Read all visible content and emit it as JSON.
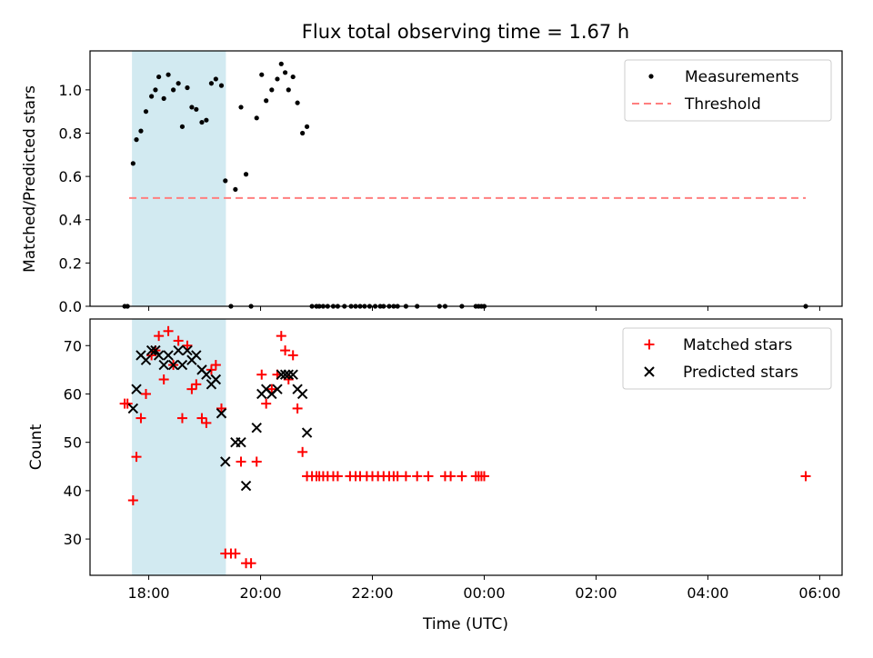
{
  "title": "Flux total observing time = 1.67 h",
  "colors": {
    "measurement": "#000000",
    "threshold": "#ff7f7f",
    "matched": "#ff0000",
    "predicted": "#000000",
    "shade": "#add8e6"
  },
  "chart_data": [
    {
      "type": "scatter",
      "panel": "top",
      "xlabel": "",
      "ylabel": "Matched/Predicted stars",
      "x_unit": "hours since 00:00 of first night (UTC)",
      "xlim": [
        16.95,
        30.4
      ],
      "ylim": [
        0,
        1.18
      ],
      "yticks": [
        "0.0",
        "0.2",
        "0.4",
        "0.6",
        "0.8",
        "1.0"
      ],
      "grid": false,
      "legend": "top-right",
      "shaded_interval": {
        "start": 17.7,
        "end": 19.38
      },
      "threshold": {
        "name": "Threshold",
        "value": 0.5,
        "x_start": 17.65,
        "x_end": 29.75
      },
      "series": [
        {
          "name": "Measurements",
          "marker": "dot",
          "points": [
            [
              17.57,
              0.0
            ],
            [
              17.62,
              0.0
            ],
            [
              17.72,
              0.66
            ],
            [
              17.78,
              0.77
            ],
            [
              17.86,
              0.81
            ],
            [
              17.95,
              0.9
            ],
            [
              18.05,
              0.97
            ],
            [
              18.12,
              1.0
            ],
            [
              18.18,
              1.06
            ],
            [
              18.27,
              0.96
            ],
            [
              18.35,
              1.07
            ],
            [
              18.44,
              1.0
            ],
            [
              18.53,
              1.03
            ],
            [
              18.6,
              0.83
            ],
            [
              18.69,
              1.01
            ],
            [
              18.77,
              0.92
            ],
            [
              18.85,
              0.91
            ],
            [
              18.95,
              0.85
            ],
            [
              19.03,
              0.86
            ],
            [
              19.12,
              1.03
            ],
            [
              19.2,
              1.05
            ],
            [
              19.3,
              1.02
            ],
            [
              19.37,
              0.58
            ],
            [
              19.47,
              0.0
            ],
            [
              19.55,
              0.54
            ],
            [
              19.65,
              0.92
            ],
            [
              19.74,
              0.61
            ],
            [
              19.83,
              0.0
            ],
            [
              19.93,
              0.87
            ],
            [
              20.02,
              1.07
            ],
            [
              20.1,
              0.95
            ],
            [
              20.2,
              1.0
            ],
            [
              20.3,
              1.05
            ],
            [
              20.37,
              1.12
            ],
            [
              20.44,
              1.08
            ],
            [
              20.5,
              1.0
            ],
            [
              20.58,
              1.06
            ],
            [
              20.66,
              0.94
            ],
            [
              20.75,
              0.8
            ],
            [
              20.83,
              0.83
            ],
            [
              20.92,
              0.0
            ],
            [
              21.0,
              0.0
            ],
            [
              21.05,
              0.0
            ],
            [
              21.12,
              0.0
            ],
            [
              21.2,
              0.0
            ],
            [
              21.3,
              0.0
            ],
            [
              21.38,
              0.0
            ],
            [
              21.5,
              0.0
            ],
            [
              21.62,
              0.0
            ],
            [
              21.7,
              0.0
            ],
            [
              21.78,
              0.0
            ],
            [
              21.86,
              0.0
            ],
            [
              21.95,
              0.0
            ],
            [
              22.05,
              0.0
            ],
            [
              22.14,
              0.0
            ],
            [
              22.2,
              0.0
            ],
            [
              22.3,
              0.0
            ],
            [
              22.38,
              0.0
            ],
            [
              22.45,
              0.0
            ],
            [
              22.6,
              0.0
            ],
            [
              22.8,
              0.0
            ],
            [
              23.2,
              0.0
            ],
            [
              23.3,
              0.0
            ],
            [
              23.6,
              0.0
            ],
            [
              23.85,
              0.0
            ],
            [
              23.9,
              0.0
            ],
            [
              23.95,
              0.0
            ],
            [
              24.0,
              0.0
            ],
            [
              29.75,
              0.0
            ]
          ]
        }
      ]
    },
    {
      "type": "scatter",
      "panel": "bottom",
      "xlabel": "Time (UTC)",
      "ylabel": "Count",
      "x_unit": "hours since 00:00 of first night (UTC)",
      "xlim": [
        16.95,
        30.4
      ],
      "xticks": [
        {
          "value": 18,
          "label": "18:00"
        },
        {
          "value": 20,
          "label": "20:00"
        },
        {
          "value": 22,
          "label": "22:00"
        },
        {
          "value": 24,
          "label": "00:00"
        },
        {
          "value": 26,
          "label": "02:00"
        },
        {
          "value": 28,
          "label": "04:00"
        },
        {
          "value": 30,
          "label": "06:00"
        }
      ],
      "ylim": [
        22.5,
        75.5
      ],
      "yticks": [
        "30",
        "40",
        "50",
        "60",
        "70"
      ],
      "grid": false,
      "legend": "top-right",
      "shaded_interval": {
        "start": 17.7,
        "end": 19.38
      },
      "series": [
        {
          "name": "Matched stars",
          "marker": "plus",
          "points": [
            [
              17.57,
              58
            ],
            [
              17.62,
              58
            ],
            [
              17.72,
              38
            ],
            [
              17.78,
              47
            ],
            [
              17.86,
              55
            ],
            [
              17.95,
              60
            ],
            [
              18.05,
              68
            ],
            [
              18.12,
              69
            ],
            [
              18.18,
              72
            ],
            [
              18.27,
              63
            ],
            [
              18.35,
              73
            ],
            [
              18.44,
              66
            ],
            [
              18.53,
              71
            ],
            [
              18.6,
              55
            ],
            [
              18.69,
              70
            ],
            [
              18.77,
              61
            ],
            [
              18.85,
              62
            ],
            [
              18.95,
              55
            ],
            [
              19.03,
              54
            ],
            [
              19.12,
              65
            ],
            [
              19.2,
              66
            ],
            [
              19.3,
              57
            ],
            [
              19.37,
              27
            ],
            [
              19.47,
              27
            ],
            [
              19.55,
              27
            ],
            [
              19.65,
              46
            ],
            [
              19.74,
              25
            ],
            [
              19.83,
              25
            ],
            [
              19.93,
              46
            ],
            [
              20.02,
              64
            ],
            [
              20.1,
              58
            ],
            [
              20.2,
              61
            ],
            [
              20.3,
              64
            ],
            [
              20.37,
              72
            ],
            [
              20.44,
              69
            ],
            [
              20.5,
              63
            ],
            [
              20.58,
              68
            ],
            [
              20.66,
              57
            ],
            [
              20.75,
              48
            ],
            [
              20.83,
              43
            ],
            [
              20.92,
              43
            ],
            [
              21.0,
              43
            ],
            [
              21.05,
              43
            ],
            [
              21.12,
              43
            ],
            [
              21.2,
              43
            ],
            [
              21.3,
              43
            ],
            [
              21.38,
              43
            ],
            [
              21.6,
              43
            ],
            [
              21.7,
              43
            ],
            [
              21.78,
              43
            ],
            [
              21.9,
              43
            ],
            [
              22.0,
              43
            ],
            [
              22.1,
              43
            ],
            [
              22.2,
              43
            ],
            [
              22.3,
              43
            ],
            [
              22.38,
              43
            ],
            [
              22.45,
              43
            ],
            [
              22.6,
              43
            ],
            [
              22.8,
              43
            ],
            [
              23.0,
              43
            ],
            [
              23.3,
              43
            ],
            [
              23.4,
              43
            ],
            [
              23.6,
              43
            ],
            [
              23.85,
              43
            ],
            [
              23.9,
              43
            ],
            [
              23.95,
              43
            ],
            [
              24.0,
              43
            ],
            [
              29.75,
              43
            ]
          ]
        },
        {
          "name": "Predicted stars",
          "marker": "x",
          "points": [
            [
              17.72,
              57
            ],
            [
              17.78,
              61
            ],
            [
              17.86,
              68
            ],
            [
              17.95,
              67
            ],
            [
              18.05,
              69
            ],
            [
              18.12,
              69
            ],
            [
              18.18,
              68
            ],
            [
              18.27,
              66
            ],
            [
              18.35,
              68
            ],
            [
              18.44,
              66
            ],
            [
              18.53,
              69
            ],
            [
              18.6,
              66
            ],
            [
              18.69,
              69
            ],
            [
              18.77,
              67
            ],
            [
              18.85,
              68
            ],
            [
              18.95,
              65
            ],
            [
              19.03,
              64
            ],
            [
              19.12,
              62
            ],
            [
              19.2,
              63
            ],
            [
              19.3,
              56
            ],
            [
              19.37,
              46
            ],
            [
              19.55,
              50
            ],
            [
              19.65,
              50
            ],
            [
              19.74,
              41
            ],
            [
              19.93,
              53
            ],
            [
              20.02,
              60
            ],
            [
              20.1,
              61
            ],
            [
              20.2,
              60
            ],
            [
              20.3,
              61
            ],
            [
              20.37,
              64
            ],
            [
              20.44,
              64
            ],
            [
              20.5,
              64
            ],
            [
              20.58,
              64
            ],
            [
              20.66,
              61
            ],
            [
              20.75,
              60
            ],
            [
              20.83,
              52
            ]
          ]
        }
      ]
    }
  ]
}
